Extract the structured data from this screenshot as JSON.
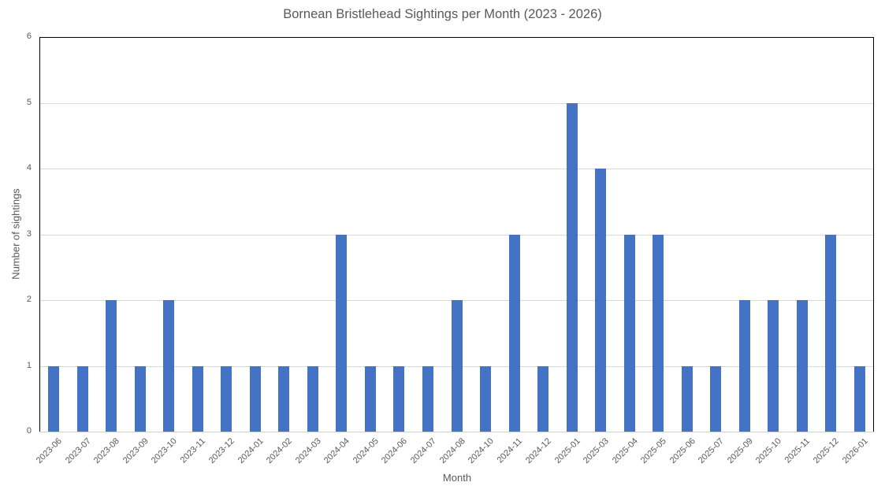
{
  "chart_data": {
    "type": "bar",
    "title": "Bornean Bristlehead Sightings per Month (2023 - 2026)",
    "xlabel": "Month",
    "ylabel": "Number of sightings",
    "ylim": [
      0,
      6
    ],
    "yticks": [
      0,
      1,
      2,
      3,
      4,
      5,
      6
    ],
    "grid": true,
    "legend": null,
    "bar_color": "#4472C4",
    "categories": [
      "2023-06",
      "2023-07",
      "2023-08",
      "2023-09",
      "2023-10",
      "2023-11",
      "2023-12",
      "2024-01",
      "2024-02",
      "2024-03",
      "2024-04",
      "2024-05",
      "2024-06",
      "2024-07",
      "2024-08",
      "2024-10",
      "2024-11",
      "2024-12",
      "2025-01",
      "2025-03",
      "2025-04",
      "2025-05",
      "2025-06",
      "2025-07",
      "2025-09",
      "2025-10",
      "2025-11",
      "2025-12",
      "2026-01"
    ],
    "values": [
      1,
      1,
      2,
      1,
      2,
      1,
      1,
      1,
      1,
      1,
      3,
      1,
      1,
      1,
      2,
      1,
      3,
      1,
      5,
      4,
      3,
      3,
      1,
      1,
      2,
      2,
      2,
      3,
      1
    ]
  }
}
